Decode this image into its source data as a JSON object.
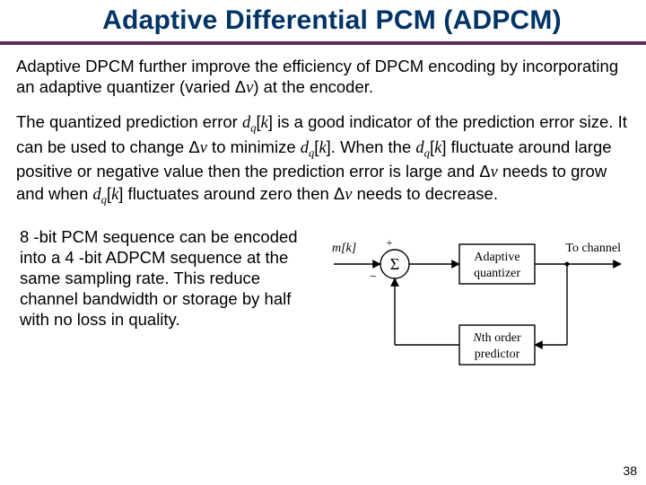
{
  "title": "Adaptive Differential PCM (ADPCM)",
  "para1_a": "Adaptive DPCM further improve the efficiency of DPCM encoding by incorporating an adaptive quantizer (varied Δ",
  "para1_b": "v",
  "para1_c": ") at the encoder.",
  "p2_a": "The quantized prediction error ",
  "p2_dq1": "d",
  "p2_sub1": "q",
  "p2_k1": "[",
  "p2_kk1": "k",
  "p2_k1b": "]",
  "p2_b": " is a good indicator of the prediction error size. It can be used to change Δ",
  "p2_v1": "v",
  "p2_c": " to minimize ",
  "p2_dq2": "d",
  "p2_sub2": "q",
  "p2_k2": "[",
  "p2_kk2": "k",
  "p2_k2b": "]",
  "p2_d": ". When the ",
  "p2_dq3": "d",
  "p2_sub3": "q",
  "p2_k3": "[",
  "p2_kk3": "k",
  "p2_k3b": "]",
  "p2_e": " fluctuate around large positive or negative value then the prediction error is large and Δ",
  "p2_v2": "v",
  "p2_f": " needs to grow and when ",
  "p2_dq4": "d",
  "p2_sub4": "q",
  "p2_k4": "[",
  "p2_kk4": "k",
  "p2_k4b": "]",
  "p2_g": " fluctuates around zero then Δ",
  "p2_v3": "v",
  "p2_h": " needs to decrease.",
  "lower_text": "8 -bit PCM sequence can be encoded into a 4 -bit ADPCM sequence at the same sampling rate. This reduce channel bandwidth or storage by half with no loss in quality.",
  "page_num": "38",
  "colors": {
    "title": "#003366",
    "rule": "#5c2d59",
    "text": "#000000",
    "bg": "#ffffff",
    "diag_stroke": "#000000",
    "diag_fill": "#ffffff"
  },
  "diagram": {
    "mk_label": "m[k]",
    "plus": "+",
    "minus": "−",
    "sigma": "Σ",
    "aq_label": "Adaptive\nquantizer",
    "to_channel": "To channel",
    "predictor_label": "Nth order\npredictor",
    "stroke_width": 1.4,
    "font_size": 14,
    "sigma_font": 18
  }
}
